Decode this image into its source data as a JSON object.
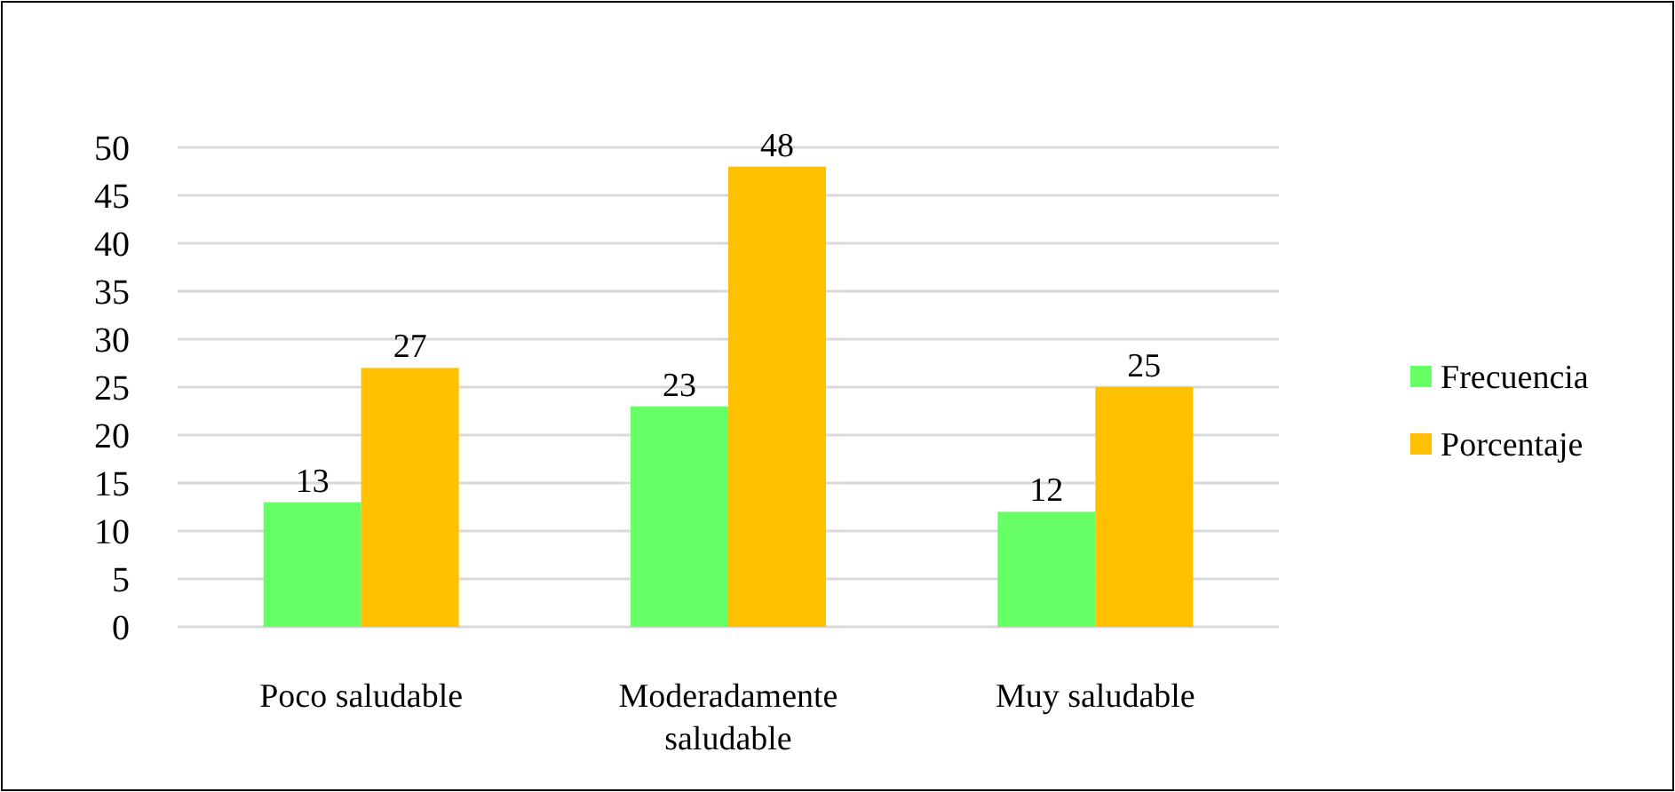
{
  "chart_data": {
    "type": "bar",
    "categories": [
      "Poco saludable",
      "Moderadamente saludable",
      "Muy saludable"
    ],
    "series": [
      {
        "name": "Frecuencia",
        "color": "#66ff66",
        "values": [
          13,
          23,
          12
        ]
      },
      {
        "name": "Porcentaje",
        "color": "#ffc000",
        "values": [
          27,
          48,
          25
        ]
      }
    ],
    "ylim": [
      0,
      50
    ],
    "yticks": [
      0,
      5,
      10,
      15,
      20,
      25,
      30,
      35,
      40,
      45,
      50
    ],
    "grid": "y",
    "legend": "right",
    "data_labels": true
  }
}
